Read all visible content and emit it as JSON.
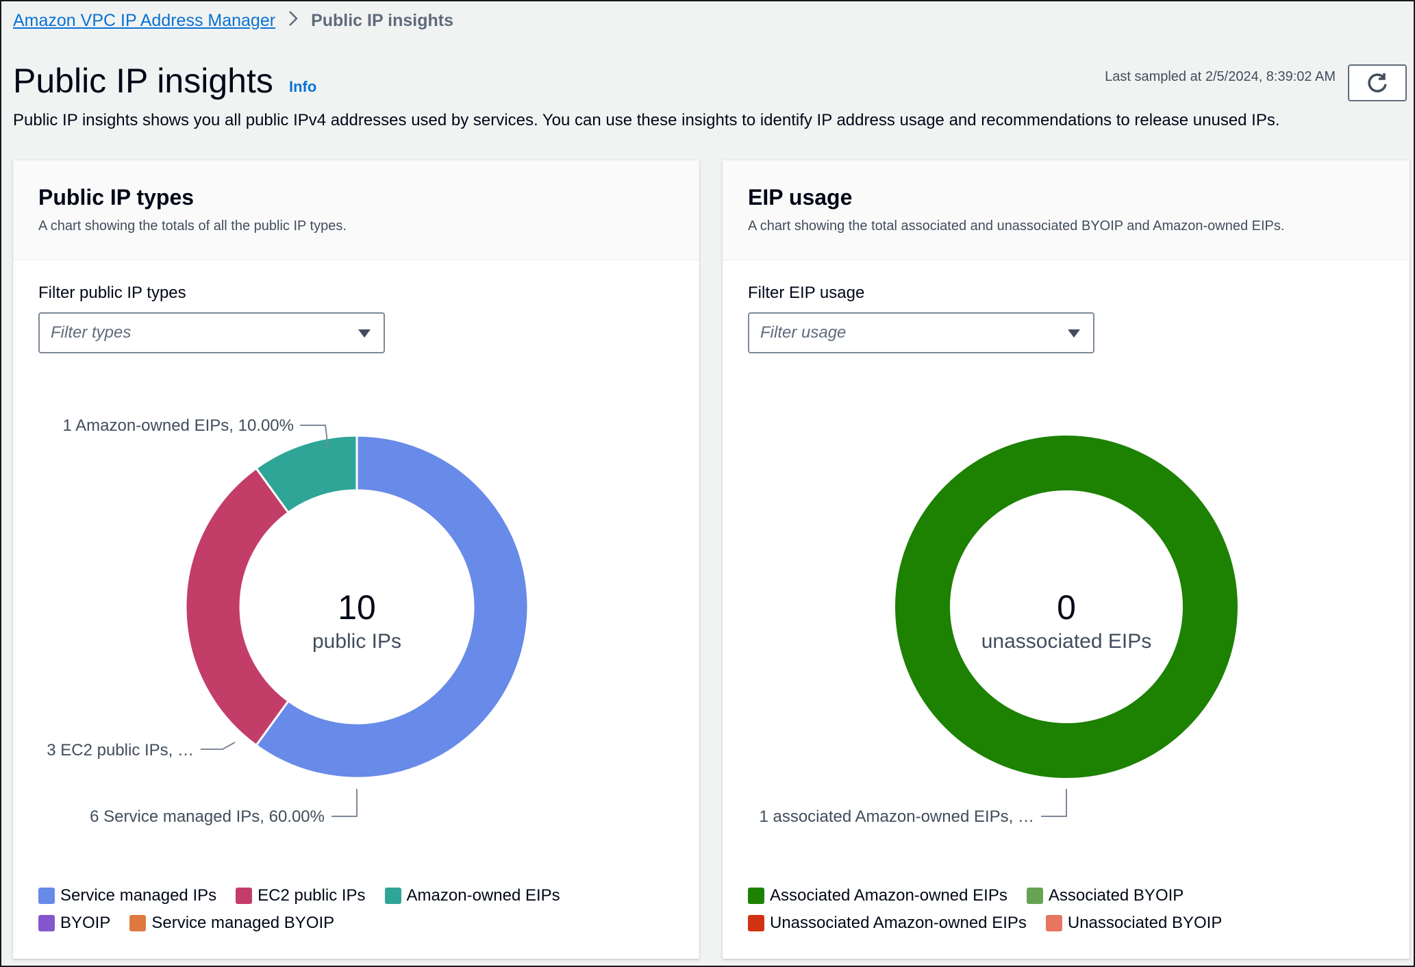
{
  "breadcrumb": {
    "parent": "Amazon VPC IP Address Manager",
    "current": "Public IP insights"
  },
  "header": {
    "title": "Public IP insights",
    "info": "Info",
    "description": "Public IP insights shows you all public IPv4 addresses used by services. You can use these insights to identify IP address usage and recommendations to release unused IPs.",
    "last_sampled": "Last sampled at 2/5/2024, 8:39:02 AM",
    "refresh_icon": "refresh-icon"
  },
  "panels": {
    "types": {
      "title": "Public IP types",
      "subtitle": "A chart showing the totals of all the public IP types.",
      "filter_label": "Filter public IP types",
      "filter_placeholder": "Filter types",
      "center_value": "10",
      "center_label": "public IPs",
      "labels": [
        "1 Amazon-owned EIPs, 10.00%",
        "3 EC2 public IPs, …",
        "6 Service managed IPs, 60.00%"
      ],
      "legend": [
        {
          "label": "Service managed IPs",
          "color": "#688ae8"
        },
        {
          "label": "EC2 public IPs",
          "color": "#c33d69"
        },
        {
          "label": "Amazon-owned EIPs",
          "color": "#2ea597"
        },
        {
          "label": "BYOIP",
          "color": "#8456ce"
        },
        {
          "label": "Service managed BYOIP",
          "color": "#e07941"
        }
      ]
    },
    "eip": {
      "title": "EIP usage",
      "subtitle": "A chart showing the total associated and unassociated BYOIP and Amazon-owned EIPs.",
      "filter_label": "Filter EIP usage",
      "filter_placeholder": "Filter usage",
      "center_value": "0",
      "center_label": "unassociated EIPs",
      "labels": [
        "1 associated Amazon-owned EIPs, …"
      ],
      "legend": [
        {
          "label": "Associated Amazon-owned EIPs",
          "color": "#1d8102"
        },
        {
          "label": "Associated BYOIP",
          "color": "#67a353"
        },
        {
          "label": "Unassociated Amazon-owned EIPs",
          "color": "#d13212"
        },
        {
          "label": "Unassociated BYOIP",
          "color": "#e8755f"
        }
      ]
    }
  },
  "chart_data": [
    {
      "type": "pie",
      "title": "Public IP types",
      "categories": [
        "Service managed IPs",
        "EC2 public IPs",
        "Amazon-owned EIPs",
        "BYOIP",
        "Service managed BYOIP"
      ],
      "values": [
        6,
        3,
        1,
        0,
        0
      ],
      "colors": [
        "#688ae8",
        "#c33d69",
        "#2ea597",
        "#8456ce",
        "#e07941"
      ],
      "legend": "bottom"
    },
    {
      "type": "pie",
      "title": "EIP usage",
      "categories": [
        "Associated Amazon-owned EIPs",
        "Associated BYOIP",
        "Unassociated Amazon-owned EIPs",
        "Unassociated BYOIP"
      ],
      "values": [
        1,
        0,
        0,
        0
      ],
      "colors": [
        "#1d8102",
        "#67a353",
        "#d13212",
        "#e8755f"
      ],
      "legend": "bottom"
    }
  ]
}
